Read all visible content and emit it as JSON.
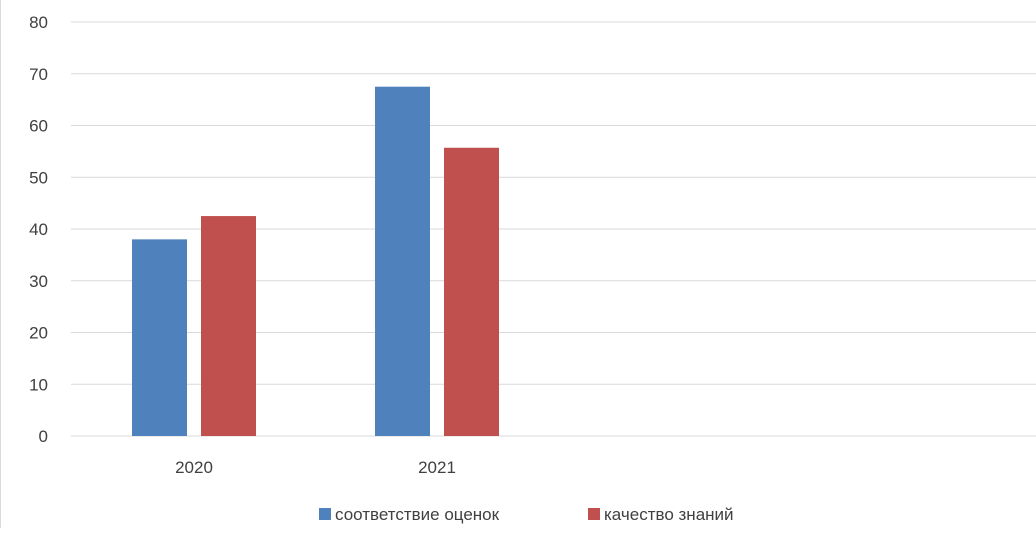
{
  "chart_data": {
    "type": "bar",
    "categories": [
      "2020",
      "2021",
      "",
      ""
    ],
    "series": [
      {
        "name": "соответствие оценок",
        "values": [
          38,
          67.5,
          null,
          null
        ],
        "color": "#4f81bd"
      },
      {
        "name": "качество знаний",
        "values": [
          42.5,
          55.7,
          null,
          null
        ],
        "color": "#c0504d"
      }
    ],
    "ylim": [
      0,
      80
    ],
    "yticks": [
      0,
      10,
      20,
      30,
      40,
      50,
      60,
      70,
      80
    ],
    "grid": true,
    "legend_position": "bottom",
    "title": "",
    "xlabel": "",
    "ylabel": ""
  }
}
